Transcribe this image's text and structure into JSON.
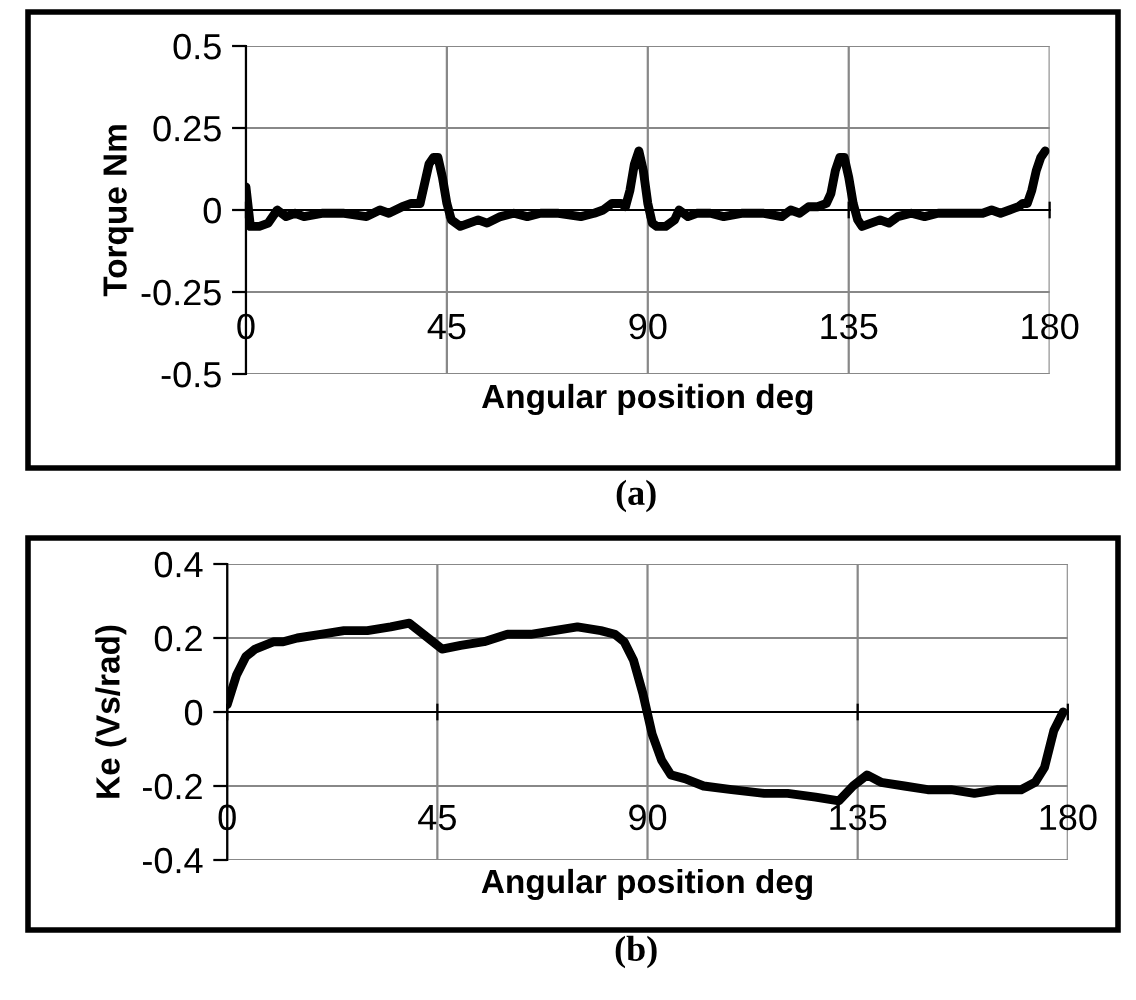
{
  "chart_data": [
    {
      "type": "line",
      "ylabel": "Torque Nm",
      "xlabel": "Angular position deg",
      "annotations": [
        "(a)"
      ],
      "xlim": [
        0,
        180
      ],
      "ylim": [
        -0.5,
        0.5
      ],
      "xticks": [
        0,
        45,
        90,
        135,
        180
      ],
      "yticks": [
        -0.5,
        -0.25,
        0,
        0.25,
        0.5
      ],
      "grid": true,
      "legend": false,
      "series": [
        {
          "color": "#000000",
          "x": [
            0,
            1,
            3,
            5,
            7,
            9,
            11,
            13,
            17,
            22,
            27,
            30,
            32,
            35,
            37,
            39,
            40,
            41,
            42,
            43,
            44,
            45,
            46,
            48,
            50,
            52,
            54,
            57,
            60,
            63,
            66,
            70,
            75,
            78,
            80,
            82,
            84,
            85,
            86,
            87,
            88,
            89,
            90,
            91,
            92,
            94,
            96,
            97,
            99,
            101,
            104,
            107,
            111,
            116,
            120,
            122,
            124,
            126,
            128,
            130,
            131,
            132,
            133,
            134,
            135,
            136,
            137,
            138,
            140,
            142,
            144,
            146,
            149,
            152,
            155,
            158,
            162,
            165,
            167,
            169,
            171,
            173,
            174,
            175,
            176,
            177,
            178,
            179
          ],
          "values": [
            0.07,
            -0.05,
            -0.05,
            -0.04,
            0.0,
            -0.02,
            -0.01,
            -0.02,
            -0.01,
            -0.01,
            -0.02,
            0.0,
            -0.01,
            0.01,
            0.02,
            0.02,
            0.08,
            0.14,
            0.16,
            0.16,
            0.1,
            0.02,
            -0.03,
            -0.05,
            -0.04,
            -0.03,
            -0.04,
            -0.02,
            -0.01,
            -0.02,
            -0.01,
            -0.01,
            -0.02,
            -0.01,
            0.0,
            0.02,
            0.02,
            0.01,
            0.06,
            0.14,
            0.18,
            0.12,
            0.02,
            -0.04,
            -0.05,
            -0.05,
            -0.03,
            0.0,
            -0.02,
            -0.01,
            -0.01,
            -0.02,
            -0.01,
            -0.01,
            -0.02,
            0.0,
            -0.01,
            0.01,
            0.01,
            0.02,
            0.05,
            0.12,
            0.16,
            0.16,
            0.1,
            0.02,
            -0.03,
            -0.05,
            -0.04,
            -0.03,
            -0.04,
            -0.02,
            -0.01,
            -0.02,
            -0.01,
            -0.01,
            -0.01,
            -0.01,
            0.0,
            -0.01,
            0.0,
            0.01,
            0.02,
            0.02,
            0.06,
            0.12,
            0.16,
            0.18
          ]
        }
      ]
    },
    {
      "type": "line",
      "ylabel": "Ke (Vs/rad)",
      "xlabel": "Angular position deg",
      "annotations": [
        "(b)"
      ],
      "xlim": [
        0,
        180
      ],
      "ylim": [
        -0.4,
        0.4
      ],
      "xticks": [
        0,
        45,
        90,
        135,
        180
      ],
      "yticks": [
        -0.4,
        -0.2,
        0,
        0.2,
        0.4
      ],
      "grid": true,
      "legend": false,
      "series": [
        {
          "color": "#000000",
          "x": [
            0,
            2,
            4,
            6,
            8,
            10,
            12,
            15,
            20,
            25,
            30,
            35,
            39,
            42,
            46,
            50,
            55,
            60,
            65,
            70,
            75,
            80,
            83,
            85,
            87,
            89,
            91,
            93,
            95,
            98,
            102,
            108,
            115,
            120,
            126,
            131,
            134,
            137,
            140,
            145,
            150,
            155,
            160,
            165,
            170,
            173,
            175,
            177,
            179
          ],
          "values": [
            0.02,
            0.1,
            0.15,
            0.17,
            0.18,
            0.19,
            0.19,
            0.2,
            0.21,
            0.22,
            0.22,
            0.23,
            0.24,
            0.21,
            0.17,
            0.18,
            0.19,
            0.21,
            0.21,
            0.22,
            0.23,
            0.22,
            0.21,
            0.19,
            0.14,
            0.05,
            -0.06,
            -0.13,
            -0.17,
            -0.18,
            -0.2,
            -0.21,
            -0.22,
            -0.22,
            -0.23,
            -0.24,
            -0.2,
            -0.17,
            -0.19,
            -0.2,
            -0.21,
            -0.21,
            -0.22,
            -0.21,
            -0.21,
            -0.19,
            -0.15,
            -0.05,
            0.0
          ]
        }
      ]
    }
  ]
}
